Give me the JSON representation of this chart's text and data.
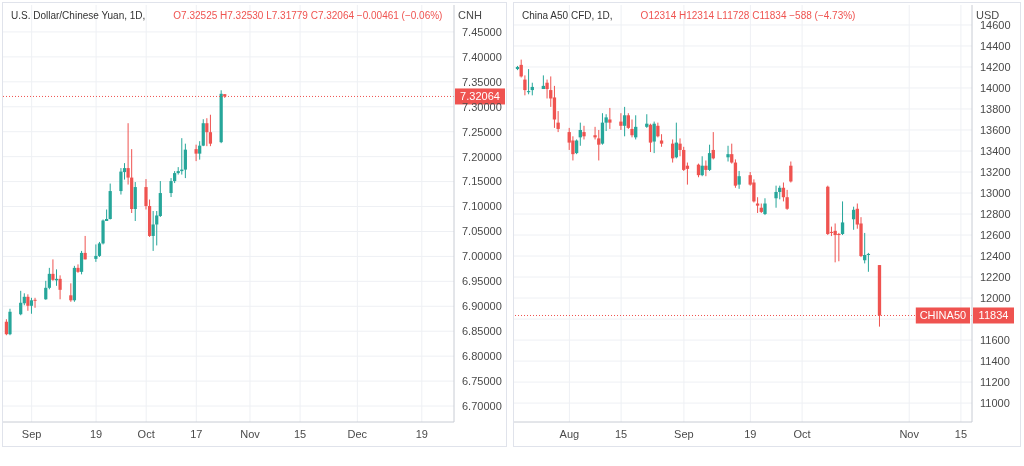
{
  "chart_data": [
    {
      "type": "candlestick",
      "title": "U.S. Dollar/Chinese Yuan, 1D,",
      "subtitle": "O7.32525  H7.32530  L7.31779  C7.32064  −0.00461 (−0.06%)",
      "ylabel": "CNH",
      "x": [
        "--08-25",
        "--08-26",
        "--08-29",
        "--08-30",
        "--08-31",
        "--09-01",
        "--09-02",
        "--09-05",
        "--09-06",
        "--09-07",
        "--09-08",
        "--09-09",
        "--09-12",
        "--09-13",
        "--09-14",
        "--09-15",
        "--09-16",
        "--09-19",
        "--09-20",
        "--09-21",
        "--09-22",
        "--09-23",
        "--09-26",
        "--09-27",
        "--09-28",
        "--09-29",
        "--09-30",
        "--10-03",
        "--10-04",
        "--10-05",
        "--10-06",
        "--10-07",
        "--10-10",
        "--10-11",
        "--10-12",
        "--10-13",
        "--10-14",
        "--10-17",
        "--10-18",
        "--10-19",
        "--10-20",
        "--10-21",
        "--10-24",
        "--10-25"
      ],
      "ohlc": [
        [
          6.869,
          6.874,
          6.842,
          6.844
        ],
        [
          6.844,
          6.895,
          6.842,
          6.889
        ],
        [
          6.884,
          6.931,
          6.882,
          6.907
        ],
        [
          6.906,
          6.926,
          6.902,
          6.919
        ],
        [
          6.919,
          6.924,
          6.891,
          6.901
        ],
        [
          6.901,
          6.917,
          6.885,
          6.912
        ],
        [
          6.913,
          6.917,
          6.897,
          6.911
        ],
        [
          6.914,
          6.951,
          6.913,
          6.937
        ],
        [
          6.937,
          6.977,
          6.934,
          6.965
        ],
        [
          6.965,
          6.994,
          6.951,
          6.953
        ],
        [
          6.952,
          6.974,
          6.941,
          6.955
        ],
        [
          6.955,
          6.962,
          6.914,
          6.933
        ],
        [
          6.922,
          6.946,
          6.909,
          6.912
        ],
        [
          6.912,
          6.981,
          6.909,
          6.977
        ],
        [
          6.977,
          6.984,
          6.967,
          6.969
        ],
        [
          6.969,
          7.011,
          6.964,
          7.007
        ],
        [
          7.007,
          7.041,
          6.994,
          6.994
        ],
        [
          6.995,
          7.024,
          6.989,
          7.001
        ],
        [
          7.001,
          7.029,
          6.999,
          7.026
        ],
        [
          7.026,
          7.074,
          7.024,
          7.072
        ],
        [
          7.071,
          7.094,
          7.071,
          7.075
        ],
        [
          7.075,
          7.146,
          7.074,
          7.131
        ],
        [
          7.131,
          7.177,
          7.124,
          7.17
        ],
        [
          7.169,
          7.187,
          7.154,
          7.177
        ],
        [
          7.177,
          7.267,
          7.144,
          7.158
        ],
        [
          7.158,
          7.215,
          7.087,
          7.095
        ],
        [
          7.095,
          7.149,
          7.071,
          7.139
        ],
        [
          7.139,
          7.155,
          7.094,
          7.101
        ],
        [
          7.101,
          7.114,
          7.039,
          7.041
        ],
        [
          7.041,
          7.091,
          7.011,
          7.064
        ],
        [
          7.064,
          7.091,
          7.022,
          7.082
        ],
        [
          7.081,
          7.151,
          7.079,
          7.127
        ],
        [
          7.127,
          7.157,
          7.119,
          7.151
        ],
        [
          7.151,
          7.171,
          7.147,
          7.167
        ],
        [
          7.167,
          7.179,
          7.164,
          7.171
        ],
        [
          7.171,
          7.237,
          7.164,
          7.174
        ],
        [
          7.174,
          7.226,
          7.157,
          7.214
        ],
        [
          7.215,
          7.224,
          7.191,
          7.206
        ],
        [
          7.206,
          7.231,
          7.194,
          7.222
        ],
        [
          7.222,
          7.275,
          7.221,
          7.267
        ],
        [
          7.267,
          7.277,
          7.221,
          7.249
        ],
        [
          7.249,
          7.284,
          7.221,
          7.226
        ],
        [
          7.229,
          7.333,
          7.227,
          7.326
        ],
        [
          7.32525,
          7.3253,
          7.31779,
          7.32064
        ]
      ],
      "colors": [
        "#ef5350",
        "#26a69a",
        "#26a69a",
        "#26a69a",
        "#ef5350",
        "#26a69a",
        "#ef5350",
        "#26a69a",
        "#26a69a",
        "#ef5350",
        "#26a69a",
        "#ef5350",
        "#ef5350",
        "#26a69a",
        "#ef5350",
        "#26a69a",
        "#ef5350",
        "#26a69a",
        "#26a69a",
        "#26a69a",
        "#26a69a",
        "#26a69a",
        "#26a69a",
        "#26a69a",
        "#ef5350",
        "#ef5350",
        "#26a69a",
        "#ef5350",
        "#ef5350",
        "#26a69a",
        "#26a69a",
        "#26a69a",
        "#26a69a",
        "#26a69a",
        "#26a69a",
        "#26a69a",
        "#26a69a",
        "#ef5350",
        "#26a69a",
        "#26a69a",
        "#ef5350",
        "#ef5350",
        "#26a69a",
        "#ef5350"
      ],
      "xlim": [
        "--08-24",
        "--12-28"
      ],
      "xticks": [
        {
          "value": "--09-01",
          "label": "Sep"
        },
        {
          "value": "--09-19",
          "label": "19"
        },
        {
          "value": "--10-03",
          "label": "Oct"
        },
        {
          "value": "--10-17",
          "label": "17"
        },
        {
          "value": "--11-01",
          "label": "Nov"
        },
        {
          "value": "--11-15",
          "label": "15"
        },
        {
          "value": "--12-01",
          "label": "Dec"
        },
        {
          "value": "--12-19",
          "label": "19"
        }
      ],
      "ylim": [
        6.668,
        7.504
      ],
      "yticks": [
        {
          "value": 6.7,
          "label": "6.70000"
        },
        {
          "value": 6.75,
          "label": "6.75000"
        },
        {
          "value": 6.8,
          "label": "6.80000"
        },
        {
          "value": 6.85,
          "label": "6.85000"
        },
        {
          "value": 6.9,
          "label": "6.90000"
        },
        {
          "value": 6.95,
          "label": "6.95000"
        },
        {
          "value": 7.0,
          "label": "7.00000"
        },
        {
          "value": 7.05,
          "label": "7.05000"
        },
        {
          "value": 7.1,
          "label": "7.10000"
        },
        {
          "value": 7.15,
          "label": "7.15000"
        },
        {
          "value": 7.2,
          "label": "7.20000"
        },
        {
          "value": 7.25,
          "label": "7.25000"
        },
        {
          "value": 7.3,
          "label": "7.30000"
        },
        {
          "value": 7.35,
          "label": "7.35000"
        },
        {
          "value": 7.4,
          "label": "7.40000"
        },
        {
          "value": 7.45,
          "label": "7.45000"
        }
      ],
      "grid": true,
      "ref_lines": [
        {
          "axis": "y",
          "value": 7.32064,
          "color": "#ef5350",
          "line_style": "dotted"
        }
      ],
      "annotations": [
        "7.32064"
      ]
    },
    {
      "type": "candlestick",
      "title": "China A50 CFD, 1D,",
      "subtitle": "O12314  H12314  L11728  C11834  −588 (−4.73%)",
      "ylabel": "USD",
      "x": [
        "--07-18",
        "--07-19",
        "--07-20",
        "--07-21",
        "--07-22",
        "--07-25",
        "--07-26",
        "--07-27",
        "--07-28",
        "--07-29",
        "--08-01",
        "--08-02",
        "--08-03",
        "--08-04",
        "--08-05",
        "--08-08",
        "--08-09",
        "--08-10",
        "--08-11",
        "--08-12",
        "--08-15",
        "--08-16",
        "--08-17",
        "--08-18",
        "--08-19",
        "--08-22",
        "--08-23",
        "--08-24",
        "--08-25",
        "--08-26",
        "--08-29",
        "--08-30",
        "--08-31",
        "--09-01",
        "--09-02",
        "--09-05",
        "--09-06",
        "--09-07",
        "--09-08",
        "--09-09",
        "--09-13",
        "--09-14",
        "--09-15",
        "--09-16",
        "--09-19",
        "--09-20",
        "--09-21",
        "--09-22",
        "--09-23",
        "--09-26",
        "--09-27",
        "--09-28",
        "--09-29",
        "--09-30",
        "--10-10",
        "--10-11",
        "--10-12",
        "--10-13",
        "--10-14",
        "--10-17",
        "--10-18",
        "--10-19",
        "--10-20",
        "--10-21",
        "--10-24"
      ],
      "ohlc": [
        [
          14180,
          14210,
          14170,
          14200
        ],
        [
          14220,
          14270,
          14100,
          14110
        ],
        [
          14080,
          14120,
          13930,
          13980
        ],
        [
          13960,
          14180,
          13940,
          13970
        ],
        [
          13980,
          14050,
          13930,
          14010
        ],
        [
          13990,
          14120,
          13990,
          14020
        ],
        [
          14050,
          14080,
          13900,
          13990
        ],
        [
          13980,
          14110,
          13820,
          13900
        ],
        [
          13910,
          14020,
          13620,
          13700
        ],
        [
          13670,
          13780,
          13580,
          13610
        ],
        [
          13580,
          13620,
          13410,
          13480
        ],
        [
          13500,
          13540,
          13310,
          13370
        ],
        [
          13380,
          13510,
          13370,
          13500
        ],
        [
          13530,
          13670,
          13450,
          13600
        ],
        [
          13580,
          13640,
          13510,
          13540
        ],
        [
          13550,
          13630,
          13510,
          13530
        ],
        [
          13520,
          13600,
          13310,
          13460
        ],
        [
          13470,
          13760,
          13460,
          13670
        ],
        [
          13670,
          13750,
          13590,
          13720
        ],
        [
          13700,
          13810,
          13610,
          13670
        ],
        [
          13680,
          13760,
          13600,
          13640
        ],
        [
          13640,
          13820,
          13540,
          13740
        ],
        [
          13740,
          13760,
          13610,
          13620
        ],
        [
          13610,
          13700,
          13530,
          13550
        ],
        [
          13530,
          13740,
          13510,
          13630
        ],
        [
          13630,
          13750,
          13620,
          13660
        ],
        [
          13650,
          13660,
          13390,
          13480
        ],
        [
          13490,
          13680,
          13380,
          13660
        ],
        [
          13640,
          13670,
          13530,
          13540
        ],
        [
          13500,
          13560,
          13440,
          13470
        ],
        [
          13470,
          13510,
          13290,
          13330
        ],
        [
          13340,
          13670,
          13330,
          13480
        ],
        [
          13470,
          13520,
          13350,
          13410
        ],
        [
          13410,
          13440,
          13210,
          13220
        ],
        [
          13260,
          13290,
          13080,
          13230
        ],
        [
          13270,
          13280,
          13150,
          13170
        ],
        [
          13170,
          13350,
          13160,
          13260
        ],
        [
          13260,
          13310,
          13160,
          13220
        ],
        [
          13220,
          13460,
          13210,
          13380
        ],
        [
          13410,
          13580,
          13320,
          13330
        ],
        [
          13340,
          13450,
          13300,
          13370
        ],
        [
          13370,
          13470,
          13280,
          13290
        ],
        [
          13290,
          13320,
          13050,
          13070
        ],
        [
          13080,
          13210,
          13040,
          13160
        ],
        [
          13170,
          13200,
          13070,
          13080
        ],
        [
          13100,
          13130,
          12910,
          12920
        ],
        [
          12900,
          12960,
          12810,
          12880
        ],
        [
          12860,
          12900,
          12810,
          12820
        ],
        [
          12800,
          12950,
          12790,
          12900
        ],
        [
          12950,
          13070,
          12860,
          13010
        ],
        [
          13010,
          13070,
          12940,
          13050
        ],
        [
          13050,
          13100,
          12920,
          12960
        ],
        [
          12960,
          13030,
          12840,
          12850
        ],
        [
          13260,
          13300,
          13100,
          13110
        ],
        [
          13060,
          13070,
          12600,
          12610
        ],
        [
          12630,
          12680,
          12590,
          12620
        ],
        [
          12640,
          12710,
          12340,
          12600
        ],
        [
          12610,
          12620,
          12350,
          12600
        ],
        [
          12610,
          12920,
          12600,
          12720
        ],
        [
          12750,
          12870,
          12650,
          12840
        ],
        [
          12850,
          12900,
          12660,
          12700
        ],
        [
          12710,
          12770,
          12390,
          12400
        ],
        [
          12360,
          12620,
          12330,
          12410
        ],
        [
          12410,
          12430,
          12250,
          12420
        ],
        [
          12314,
          12314,
          11728,
          11834
        ]
      ],
      "colors": [
        "#26a69a",
        "#ef5350",
        "#ef5350",
        "#26a69a",
        "#26a69a",
        "#26a69a",
        "#ef5350",
        "#ef5350",
        "#ef5350",
        "#ef5350",
        "#ef5350",
        "#ef5350",
        "#26a69a",
        "#26a69a",
        "#ef5350",
        "#ef5350",
        "#ef5350",
        "#26a69a",
        "#26a69a",
        "#ef5350",
        "#ef5350",
        "#26a69a",
        "#ef5350",
        "#ef5350",
        "#26a69a",
        "#26a69a",
        "#ef5350",
        "#26a69a",
        "#ef5350",
        "#ef5350",
        "#ef5350",
        "#26a69a",
        "#ef5350",
        "#ef5350",
        "#ef5350",
        "#ef5350",
        "#26a69a",
        "#ef5350",
        "#26a69a",
        "#ef5350",
        "#26a69a",
        "#ef5350",
        "#ef5350",
        "#26a69a",
        "#ef5350",
        "#ef5350",
        "#ef5350",
        "#ef5350",
        "#26a69a",
        "#26a69a",
        "#26a69a",
        "#ef5350",
        "#ef5350",
        "#ef5350",
        "#ef5350",
        "#ef5350",
        "#ef5350",
        "#ef5350",
        "#26a69a",
        "#26a69a",
        "#ef5350",
        "#ef5350",
        "#26a69a",
        "#26a69a",
        "#ef5350"
      ],
      "xlim": [
        "--07-17",
        "--11-18"
      ],
      "xticks": [
        {
          "value": "--08-01",
          "label": "Aug"
        },
        {
          "value": "--08-15",
          "label": "15"
        },
        {
          "value": "--09-01",
          "label": "Sep"
        },
        {
          "value": "--09-19",
          "label": "19"
        },
        {
          "value": "--10-03",
          "label": "Oct"
        },
        {
          "value": "--11-01",
          "label": "Nov"
        },
        {
          "value": "--11-15",
          "label": "15"
        }
      ],
      "ylim": [
        10820,
        14790
      ],
      "yticks": [
        11000,
        11200,
        11400,
        11600,
        {
          "value": 11800,
          "label": null
        },
        12000,
        12200,
        12400,
        12600,
        12800,
        13000,
        13200,
        13400,
        13600,
        13800,
        14000,
        14200,
        14400,
        14600
      ],
      "grid": true,
      "ref_lines": [
        {
          "axis": "y",
          "value": 11834,
          "label": "CHINA50",
          "color": "#ef5350",
          "line_style": "dotted"
        }
      ],
      "annotations": [
        {
          "text": "11834",
          "y": 11834
        }
      ]
    }
  ]
}
